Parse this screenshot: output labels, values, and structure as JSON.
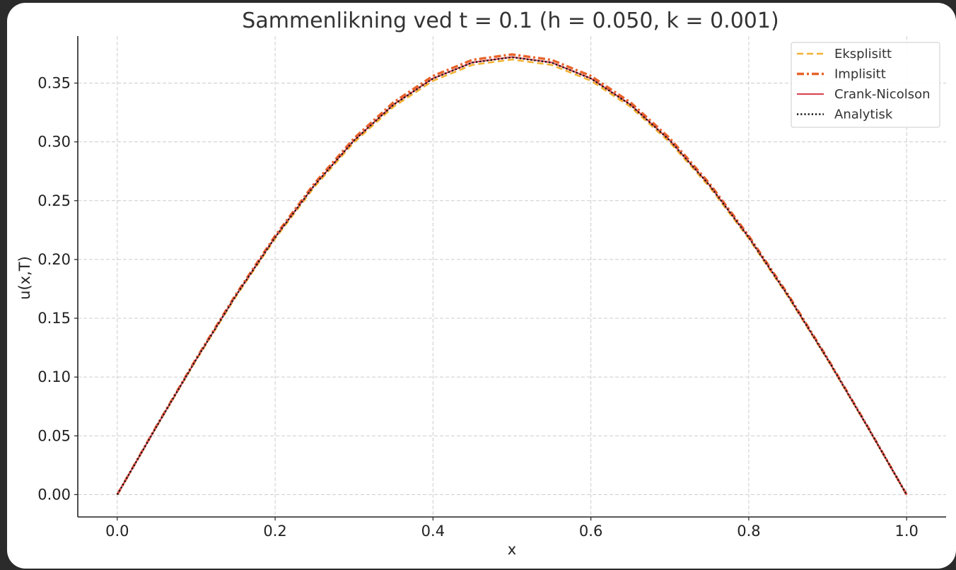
{
  "chart_data": {
    "type": "line",
    "title": "Sammenlikning ved t = 0.1 (h = 0.050, k = 0.001)",
    "xlabel": "x",
    "ylabel": "u(x,T)",
    "xlim": [
      -0.05,
      1.05
    ],
    "ylim": [
      -0.019,
      0.39
    ],
    "xticks": [
      0.0,
      0.2,
      0.4,
      0.6,
      0.8,
      1.0
    ],
    "xtick_labels": [
      "0.0",
      "0.2",
      "0.4",
      "0.6",
      "0.8",
      "1.0"
    ],
    "yticks": [
      0.0,
      0.05,
      0.1,
      0.15,
      0.2,
      0.25,
      0.3,
      0.35
    ],
    "ytick_labels": [
      "0.00",
      "0.05",
      "0.10",
      "0.15",
      "0.20",
      "0.25",
      "0.30",
      "0.35"
    ],
    "grid": true,
    "legend_position": "top-right",
    "x": [
      0.0,
      0.05,
      0.1,
      0.15,
      0.2,
      0.25,
      0.3,
      0.35,
      0.4,
      0.45,
      0.5,
      0.55,
      0.6,
      0.65,
      0.7,
      0.75,
      0.8,
      0.85,
      0.9,
      0.95,
      1.0
    ],
    "series": [
      {
        "name": "Eksplisitt",
        "color": "#f2b133",
        "dash": "dashed",
        "values": [
          0.0,
          0.0579,
          0.1144,
          0.1681,
          0.2177,
          0.2619,
          0.2996,
          0.3299,
          0.352,
          0.3655,
          0.3701,
          0.3655,
          0.352,
          0.3299,
          0.2996,
          0.2619,
          0.2177,
          0.1681,
          0.1144,
          0.0579,
          0.0
        ]
      },
      {
        "name": "Implisitt",
        "color": "#e8632b",
        "dash": "dashdot",
        "values": [
          0.0,
          0.0586,
          0.1157,
          0.17,
          0.2201,
          0.2649,
          0.3031,
          0.3337,
          0.3561,
          0.3698,
          0.3744,
          0.3698,
          0.3561,
          0.3337,
          0.3031,
          0.2649,
          0.2201,
          0.17,
          0.1157,
          0.0586,
          0.0
        ]
      },
      {
        "name": "Crank-Nicolson",
        "color": "#d94856",
        "dash": "solid",
        "values": [
          0.0,
          0.0583,
          0.115,
          0.169,
          0.2189,
          0.2634,
          0.3013,
          0.3318,
          0.354,
          0.3676,
          0.3722,
          0.3676,
          0.354,
          0.3318,
          0.3013,
          0.2634,
          0.2189,
          0.169,
          0.115,
          0.0583,
          0.0
        ]
      },
      {
        "name": "Analytisk",
        "color": "#111111",
        "dash": "dotted",
        "values": [
          0.0,
          0.0582,
          0.115,
          0.169,
          0.2188,
          0.2633,
          0.3012,
          0.3316,
          0.3539,
          0.3675,
          0.372,
          0.3675,
          0.3539,
          0.3316,
          0.3012,
          0.2633,
          0.2188,
          0.169,
          0.115,
          0.0582,
          0.0
        ]
      }
    ]
  },
  "colors": {
    "background": "#ffffff",
    "frame": "#2b2b2b",
    "grid": "#cccccc",
    "axis": "#222222"
  }
}
